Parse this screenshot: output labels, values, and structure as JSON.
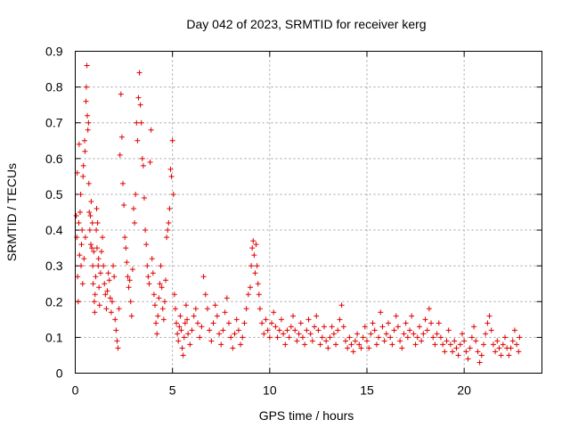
{
  "chart_data": {
    "type": "scatter",
    "title": "Day 042 of 2023, SRMTID for receiver kerg",
    "xlabel": "GPS time / hours",
    "ylabel": "SRMTID / TECUs",
    "xlim": [
      0,
      24
    ],
    "ylim": [
      0,
      0.9
    ],
    "x_ticks": [
      0,
      5,
      10,
      15,
      20
    ],
    "x_tick_labels": [
      "0",
      "5",
      "10",
      "15",
      "20"
    ],
    "y_ticks": [
      0,
      0.1,
      0.2,
      0.3,
      0.4,
      0.5,
      0.6,
      0.7,
      0.8,
      0.9
    ],
    "y_tick_labels": [
      "0",
      "0.1",
      "0.2",
      "0.3",
      "0.4",
      "0.5",
      "0.6",
      "0.7",
      "0.8",
      "0.9"
    ],
    "grid": true,
    "marker": "+",
    "color": "#e00000",
    "series": [
      {
        "name": "SRMTID",
        "points": [
          [
            0.05,
            0.44
          ],
          [
            0.08,
            0.38
          ],
          [
            0.1,
            0.56
          ],
          [
            0.12,
            0.27
          ],
          [
            0.15,
            0.2
          ],
          [
            0.18,
            0.42
          ],
          [
            0.2,
            0.64
          ],
          [
            0.22,
            0.33
          ],
          [
            0.25,
            0.45
          ],
          [
            0.28,
            0.5
          ],
          [
            0.3,
            0.3
          ],
          [
            0.32,
            0.36
          ],
          [
            0.35,
            0.4
          ],
          [
            0.38,
            0.25
          ],
          [
            0.4,
            0.55
          ],
          [
            0.42,
            0.58
          ],
          [
            0.45,
            0.32
          ],
          [
            0.48,
            0.65
          ],
          [
            0.5,
            0.62
          ],
          [
            0.52,
            0.38
          ],
          [
            0.55,
            0.76
          ],
          [
            0.57,
            0.8
          ],
          [
            0.6,
            0.86
          ],
          [
            0.62,
            0.72
          ],
          [
            0.65,
            0.68
          ],
          [
            0.68,
            0.7
          ],
          [
            0.7,
            0.53
          ],
          [
            0.72,
            0.45
          ],
          [
            0.75,
            0.4
          ],
          [
            0.78,
            0.44
          ],
          [
            0.8,
            0.36
          ],
          [
            0.82,
            0.48
          ],
          [
            0.85,
            0.35
          ],
          [
            0.88,
            0.42
          ],
          [
            0.9,
            0.3
          ],
          [
            0.92,
            0.25
          ],
          [
            0.95,
            0.34
          ],
          [
            0.98,
            0.2
          ],
          [
            1.0,
            0.17
          ],
          [
            1.02,
            0.22
          ],
          [
            1.05,
            0.27
          ],
          [
            1.08,
            0.4
          ],
          [
            1.1,
            0.46
          ],
          [
            1.12,
            0.35
          ],
          [
            1.15,
            0.42
          ],
          [
            1.18,
            0.3
          ],
          [
            1.2,
            0.32
          ],
          [
            1.22,
            0.24
          ],
          [
            1.25,
            0.19
          ],
          [
            1.3,
            0.28
          ],
          [
            1.35,
            0.34
          ],
          [
            1.4,
            0.38
          ],
          [
            1.45,
            0.3
          ],
          [
            1.5,
            0.25
          ],
          [
            1.55,
            0.22
          ],
          [
            1.6,
            0.18
          ],
          [
            1.65,
            0.23
          ],
          [
            1.7,
            0.28
          ],
          [
            1.75,
            0.26
          ],
          [
            1.8,
            0.21
          ],
          [
            1.85,
            0.17
          ],
          [
            1.9,
            0.2
          ],
          [
            1.95,
            0.3
          ],
          [
            2.0,
            0.27
          ],
          [
            2.05,
            0.15
          ],
          [
            2.1,
            0.12
          ],
          [
            2.15,
            0.09
          ],
          [
            2.2,
            0.07
          ],
          [
            2.25,
            0.18
          ],
          [
            2.3,
            0.61
          ],
          [
            2.35,
            0.78
          ],
          [
            2.4,
            0.66
          ],
          [
            2.45,
            0.53
          ],
          [
            2.5,
            0.47
          ],
          [
            2.55,
            0.38
          ],
          [
            2.6,
            0.35
          ],
          [
            2.65,
            0.31
          ],
          [
            2.7,
            0.27
          ],
          [
            2.75,
            0.24
          ],
          [
            2.8,
            0.26
          ],
          [
            2.85,
            0.2
          ],
          [
            2.9,
            0.16
          ],
          [
            2.95,
            0.29
          ],
          [
            3.0,
            0.46
          ],
          [
            3.05,
            0.42
          ],
          [
            3.1,
            0.5
          ],
          [
            3.15,
            0.7
          ],
          [
            3.2,
            0.65
          ],
          [
            3.25,
            0.77
          ],
          [
            3.3,
            0.84
          ],
          [
            3.35,
            0.75
          ],
          [
            3.4,
            0.7
          ],
          [
            3.45,
            0.6
          ],
          [
            3.5,
            0.58
          ],
          [
            3.55,
            0.49
          ],
          [
            3.6,
            0.4
          ],
          [
            3.65,
            0.36
          ],
          [
            3.7,
            0.3
          ],
          [
            3.75,
            0.27
          ],
          [
            3.8,
            0.25
          ],
          [
            3.85,
            0.59
          ],
          [
            3.9,
            0.68
          ],
          [
            3.95,
            0.32
          ],
          [
            4.0,
            0.28
          ],
          [
            4.05,
            0.22
          ],
          [
            4.1,
            0.19
          ],
          [
            4.15,
            0.14
          ],
          [
            4.2,
            0.11
          ],
          [
            4.25,
            0.16
          ],
          [
            4.3,
            0.21
          ],
          [
            4.35,
            0.25
          ],
          [
            4.4,
            0.3
          ],
          [
            4.45,
            0.24
          ],
          [
            4.5,
            0.18
          ],
          [
            4.55,
            0.15
          ],
          [
            4.6,
            0.2
          ],
          [
            4.65,
            0.26
          ],
          [
            4.7,
            0.38
          ],
          [
            4.75,
            0.4
          ],
          [
            4.8,
            0.42
          ],
          [
            4.85,
            0.46
          ],
          [
            4.9,
            0.57
          ],
          [
            4.95,
            0.55
          ],
          [
            5.0,
            0.65
          ],
          [
            5.05,
            0.5
          ],
          [
            5.1,
            0.22
          ],
          [
            5.15,
            0.18
          ],
          [
            5.2,
            0.14
          ],
          [
            5.25,
            0.11
          ],
          [
            5.3,
            0.09
          ],
          [
            5.35,
            0.13
          ],
          [
            5.4,
            0.16
          ],
          [
            5.45,
            0.12
          ],
          [
            5.5,
            0.07
          ],
          [
            5.55,
            0.05
          ],
          [
            5.6,
            0.1
          ],
          [
            5.65,
            0.14
          ],
          [
            5.7,
            0.19
          ],
          [
            5.75,
            0.15
          ],
          [
            5.8,
            0.11
          ],
          [
            5.9,
            0.08
          ],
          [
            6.0,
            0.12
          ],
          [
            6.1,
            0.16
          ],
          [
            6.2,
            0.18
          ],
          [
            6.3,
            0.14
          ],
          [
            6.4,
            0.1
          ],
          [
            6.5,
            0.13
          ],
          [
            6.6,
            0.27
          ],
          [
            6.7,
            0.22
          ],
          [
            6.8,
            0.18
          ],
          [
            6.9,
            0.12
          ],
          [
            7.0,
            0.09
          ],
          [
            7.1,
            0.14
          ],
          [
            7.2,
            0.19
          ],
          [
            7.3,
            0.16
          ],
          [
            7.4,
            0.11
          ],
          [
            7.5,
            0.08
          ],
          [
            7.6,
            0.12
          ],
          [
            7.7,
            0.17
          ],
          [
            7.8,
            0.21
          ],
          [
            7.9,
            0.14
          ],
          [
            8.0,
            0.1
          ],
          [
            8.1,
            0.07
          ],
          [
            8.2,
            0.11
          ],
          [
            8.3,
            0.15
          ],
          [
            8.4,
            0.12
          ],
          [
            8.5,
            0.08
          ],
          [
            8.6,
            0.1
          ],
          [
            8.7,
            0.14
          ],
          [
            8.8,
            0.18
          ],
          [
            8.9,
            0.22
          ],
          [
            9.0,
            0.24
          ],
          [
            9.05,
            0.3
          ],
          [
            9.1,
            0.35
          ],
          [
            9.15,
            0.37
          ],
          [
            9.2,
            0.33
          ],
          [
            9.25,
            0.28
          ],
          [
            9.3,
            0.36
          ],
          [
            9.35,
            0.3
          ],
          [
            9.4,
            0.25
          ],
          [
            9.45,
            0.22
          ],
          [
            9.5,
            0.18
          ],
          [
            9.6,
            0.14
          ],
          [
            9.7,
            0.11
          ],
          [
            9.8,
            0.15
          ],
          [
            9.9,
            0.12
          ],
          [
            10.0,
            0.1
          ],
          [
            10.1,
            0.14
          ],
          [
            10.2,
            0.17
          ],
          [
            10.3,
            0.13
          ],
          [
            10.4,
            0.1
          ],
          [
            10.5,
            0.12
          ],
          [
            10.6,
            0.15
          ],
          [
            10.7,
            0.11
          ],
          [
            10.8,
            0.08
          ],
          [
            10.9,
            0.12
          ],
          [
            11.0,
            0.1
          ],
          [
            11.1,
            0.13
          ],
          [
            11.2,
            0.16
          ],
          [
            11.3,
            0.12
          ],
          [
            11.4,
            0.09
          ],
          [
            11.5,
            0.11
          ],
          [
            11.6,
            0.14
          ],
          [
            11.7,
            0.1
          ],
          [
            11.8,
            0.08
          ],
          [
            11.9,
            0.12
          ],
          [
            12.0,
            0.15
          ],
          [
            12.1,
            0.11
          ],
          [
            12.2,
            0.09
          ],
          [
            12.3,
            0.13
          ],
          [
            12.4,
            0.16
          ],
          [
            12.5,
            0.12
          ],
          [
            12.6,
            0.08
          ],
          [
            12.7,
            0.1
          ],
          [
            12.8,
            0.13
          ],
          [
            12.9,
            0.09
          ],
          [
            13.0,
            0.07
          ],
          [
            13.1,
            0.1
          ],
          [
            13.2,
            0.13
          ],
          [
            13.3,
            0.11
          ],
          [
            13.4,
            0.08
          ],
          [
            13.5,
            0.12
          ],
          [
            13.6,
            0.15
          ],
          [
            13.7,
            0.19
          ],
          [
            13.8,
            0.13
          ],
          [
            13.9,
            0.09
          ],
          [
            14.0,
            0.07
          ],
          [
            14.1,
            0.1
          ],
          [
            14.2,
            0.08
          ],
          [
            14.3,
            0.06
          ],
          [
            14.4,
            0.09
          ],
          [
            14.5,
            0.11
          ],
          [
            14.6,
            0.08
          ],
          [
            14.7,
            0.07
          ],
          [
            14.8,
            0.1
          ],
          [
            14.9,
            0.13
          ],
          [
            15.0,
            0.09
          ],
          [
            15.1,
            0.07
          ],
          [
            15.2,
            0.11
          ],
          [
            15.3,
            0.14
          ],
          [
            15.4,
            0.12
          ],
          [
            15.5,
            0.08
          ],
          [
            15.6,
            0.1
          ],
          [
            15.7,
            0.17
          ],
          [
            15.8,
            0.13
          ],
          [
            15.9,
            0.09
          ],
          [
            16.0,
            0.11
          ],
          [
            16.1,
            0.14
          ],
          [
            16.2,
            0.1
          ],
          [
            16.3,
            0.08
          ],
          [
            16.4,
            0.12
          ],
          [
            16.5,
            0.16
          ],
          [
            16.6,
            0.13
          ],
          [
            16.7,
            0.09
          ],
          [
            16.8,
            0.07
          ],
          [
            16.9,
            0.11
          ],
          [
            17.0,
            0.14
          ],
          [
            17.1,
            0.1
          ],
          [
            17.2,
            0.12
          ],
          [
            17.3,
            0.16
          ],
          [
            17.4,
            0.11
          ],
          [
            17.5,
            0.08
          ],
          [
            17.6,
            0.1
          ],
          [
            17.7,
            0.13
          ],
          [
            17.8,
            0.09
          ],
          [
            17.9,
            0.11
          ],
          [
            18.0,
            0.15
          ],
          [
            18.1,
            0.12
          ],
          [
            18.2,
            0.18
          ],
          [
            18.3,
            0.14
          ],
          [
            18.4,
            0.1
          ],
          [
            18.5,
            0.08
          ],
          [
            18.6,
            0.11
          ],
          [
            18.7,
            0.14
          ],
          [
            18.8,
            0.1
          ],
          [
            18.9,
            0.08
          ],
          [
            19.0,
            0.06
          ],
          [
            19.1,
            0.09
          ],
          [
            19.2,
            0.12
          ],
          [
            19.3,
            0.08
          ],
          [
            19.4,
            0.06
          ],
          [
            19.5,
            0.09
          ],
          [
            19.6,
            0.07
          ],
          [
            19.7,
            0.05
          ],
          [
            19.8,
            0.08
          ],
          [
            19.9,
            0.11
          ],
          [
            20.0,
            0.09
          ],
          [
            20.1,
            0.06
          ],
          [
            20.2,
            0.04
          ],
          [
            20.3,
            0.07
          ],
          [
            20.4,
            0.1
          ],
          [
            20.5,
            0.13
          ],
          [
            20.6,
            0.09
          ],
          [
            20.7,
            0.06
          ],
          [
            20.8,
            0.03
          ],
          [
            20.9,
            0.05
          ],
          [
            21.0,
            0.08
          ],
          [
            21.1,
            0.11
          ],
          [
            21.2,
            0.14
          ],
          [
            21.3,
            0.16
          ],
          [
            21.4,
            0.12
          ],
          [
            21.5,
            0.08
          ],
          [
            21.6,
            0.06
          ],
          [
            21.7,
            0.09
          ],
          [
            21.8,
            0.07
          ],
          [
            21.9,
            0.05
          ],
          [
            22.0,
            0.08
          ],
          [
            22.1,
            0.1
          ],
          [
            22.2,
            0.07
          ],
          [
            22.3,
            0.05
          ],
          [
            22.4,
            0.07
          ],
          [
            22.5,
            0.09
          ],
          [
            22.6,
            0.12
          ],
          [
            22.7,
            0.08
          ],
          [
            22.8,
            0.06
          ],
          [
            22.85,
            0.1
          ]
        ]
      }
    ]
  }
}
